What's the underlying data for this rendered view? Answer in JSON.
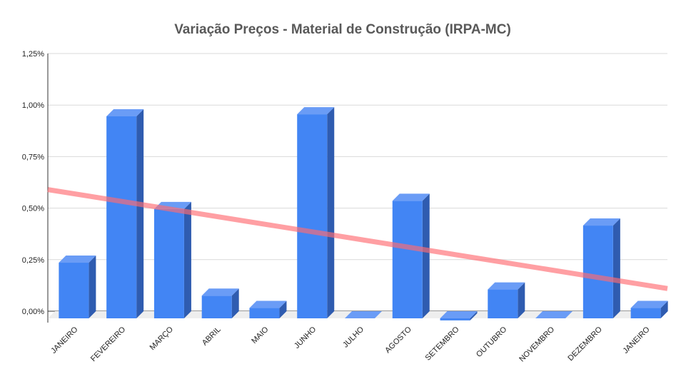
{
  "chart_data": {
    "type": "bar",
    "title": "Variação Preços - Material de Construção (IRPA-MC)",
    "xlabel": "",
    "ylabel": "",
    "categories": [
      "JANEIRO",
      "FEVEREIRO",
      "MARÇO",
      "ABRIL",
      "MAIO",
      "JUNHO",
      "JULHO",
      "AGOSTO",
      "SETEMBRO",
      "OUTUBRO",
      "NOVEMBRO",
      "DEZEMBRO",
      "JANEIRO"
    ],
    "values": [
      0.27,
      0.98,
      0.53,
      0.11,
      0.05,
      0.99,
      0.0,
      0.57,
      -0.01,
      0.14,
      0.0,
      0.45,
      0.05
    ],
    "ylim": [
      0,
      1.25
    ],
    "yticks": [
      "0,00%",
      "0,25%",
      "0,50%",
      "0,75%",
      "1,00%",
      "1,25%"
    ],
    "trendline": {
      "start": 0.59,
      "end": 0.11
    },
    "grid": true,
    "legend": "none",
    "colors": {
      "bar_front": "#4285f4",
      "bar_top": "#6a9cf6",
      "bar_side": "#2f5cb0",
      "trend": "#ff6b72",
      "grid": "#d9d9d9",
      "floor": "#eeeeee"
    }
  }
}
